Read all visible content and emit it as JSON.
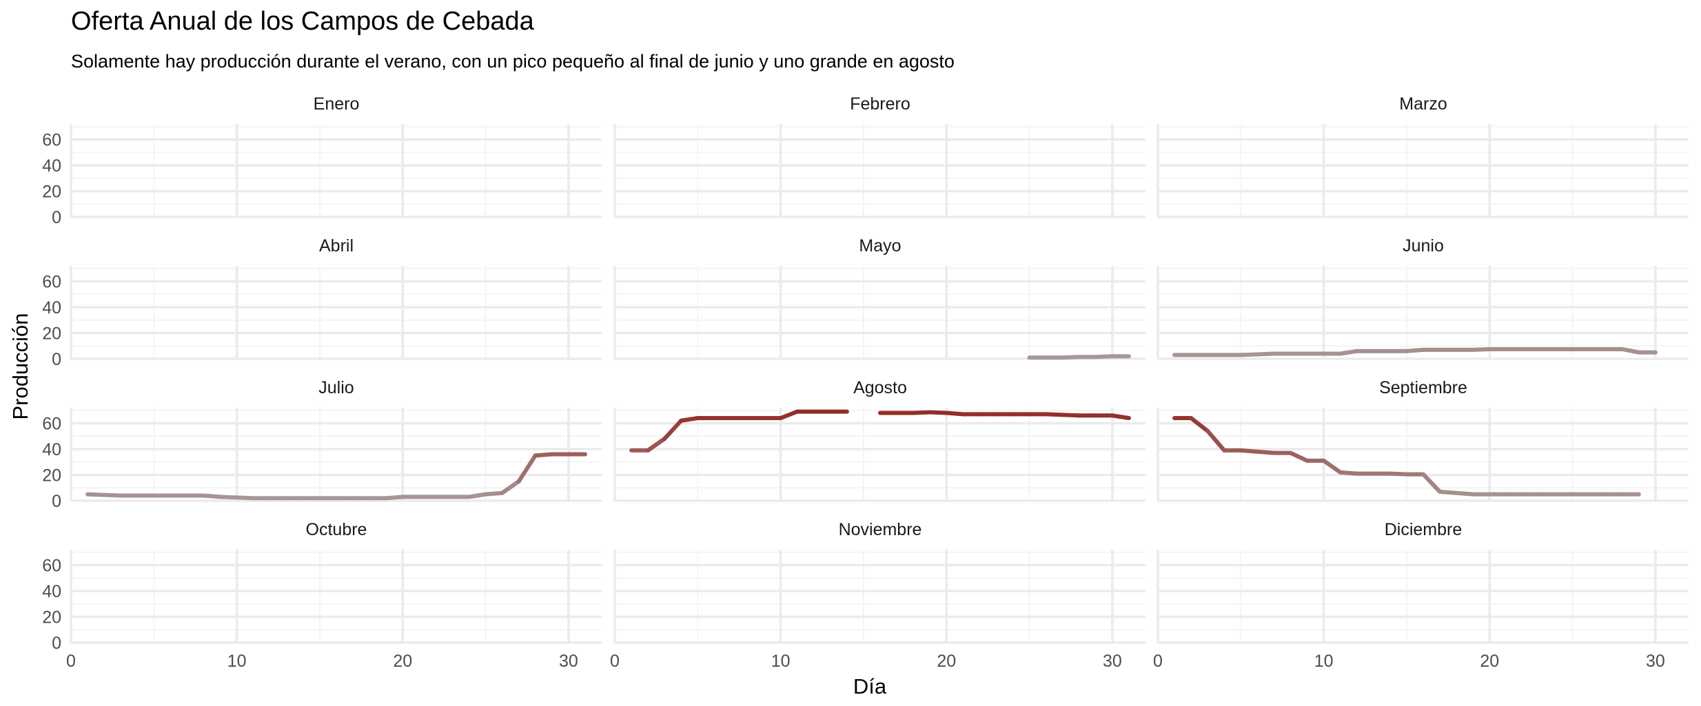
{
  "title": "Oferta Anual de los Campos de Cebada",
  "subtitle": "Solamente hay producción durante el verano, con un pico pequeño al final de junio y uno grande en agosto",
  "chart_data": {
    "type": "line",
    "facet": "month",
    "xlabel": "Día",
    "ylabel": "Producción",
    "xlim": [
      0,
      32
    ],
    "ylim": [
      0,
      72
    ],
    "x_ticks": [
      0,
      10,
      20,
      30
    ],
    "y_ticks": [
      0,
      20,
      40,
      60
    ],
    "grid": true,
    "color_low": "#a69a98",
    "color_high": "#922a24",
    "color_scale_max": 70,
    "panels": [
      {
        "name": "Enero",
        "segments": []
      },
      {
        "name": "Febrero",
        "segments": []
      },
      {
        "name": "Marzo",
        "segments": []
      },
      {
        "name": "Abril",
        "segments": []
      },
      {
        "name": "Mayo",
        "segments": [
          {
            "x": [
              25,
              26,
              27,
              28,
              29,
              30,
              31
            ],
            "y": [
              1,
              1,
              1,
              1.5,
              1.5,
              2,
              2
            ]
          }
        ]
      },
      {
        "name": "Junio",
        "segments": [
          {
            "x": [
              1,
              2,
              3,
              4,
              5,
              6,
              7,
              8,
              9,
              10,
              11,
              12,
              13,
              14,
              15,
              16,
              17,
              18,
              19,
              20,
              21,
              22,
              23,
              24,
              25,
              26,
              27,
              28,
              29,
              30
            ],
            "y": [
              3,
              3,
              3,
              3,
              3,
              3.5,
              4,
              4,
              4,
              4,
              4,
              6,
              6,
              6,
              6,
              7,
              7,
              7,
              7,
              7.5,
              7.5,
              7.5,
              7.5,
              7.5,
              7.5,
              7.5,
              7.5,
              7.5,
              5,
              5
            ]
          }
        ]
      },
      {
        "name": "Julio",
        "segments": [
          {
            "x": [
              1,
              2,
              3,
              4,
              5,
              6,
              7,
              8,
              9,
              10,
              11,
              12,
              13,
              14,
              15,
              16,
              17,
              18,
              19,
              20,
              21,
              22,
              23,
              24,
              25,
              26,
              27,
              28,
              29,
              30,
              31
            ],
            "y": [
              5,
              4.5,
              4,
              4,
              4,
              4,
              4,
              4,
              3,
              2.5,
              2,
              2,
              2,
              2,
              2,
              2,
              2,
              2,
              2,
              3,
              3,
              3,
              3,
              3,
              5,
              6,
              15,
              35,
              36,
              36,
              36
            ]
          }
        ]
      },
      {
        "name": "Agosto",
        "segments": [
          {
            "x": [
              1,
              2,
              3,
              4,
              5,
              6,
              7,
              8,
              9,
              10,
              11,
              12,
              13,
              14
            ],
            "y": [
              39,
              39,
              48,
              62,
              64,
              64,
              64,
              64,
              64,
              64,
              69,
              69,
              69,
              69
            ]
          },
          {
            "x": [
              16,
              17,
              18,
              19,
              20,
              21,
              22,
              23,
              24,
              25,
              26,
              27,
              28,
              29,
              30,
              31
            ],
            "y": [
              68,
              68,
              68,
              68.5,
              68,
              67,
              67,
              67,
              67,
              67,
              67,
              66.5,
              66,
              66,
              66,
              64
            ]
          }
        ]
      },
      {
        "name": "Septiembre",
        "segments": [
          {
            "x": [
              1,
              2,
              3,
              4,
              5,
              6,
              7,
              8,
              9,
              10,
              11,
              12,
              13,
              14,
              15,
              16,
              17,
              18,
              19,
              20,
              21,
              22,
              23,
              24,
              25,
              26,
              27,
              28,
              29
            ],
            "y": [
              64,
              64,
              54,
              39,
              39,
              38,
              37,
              37,
              31,
              31,
              22,
              21,
              21,
              21,
              20.5,
              20.5,
              7,
              6,
              5,
              5,
              5,
              5,
              5,
              5,
              5,
              5,
              5,
              5,
              5
            ]
          }
        ]
      },
      {
        "name": "Octubre",
        "segments": []
      },
      {
        "name": "Noviembre",
        "segments": []
      },
      {
        "name": "Diciembre",
        "segments": []
      }
    ]
  }
}
